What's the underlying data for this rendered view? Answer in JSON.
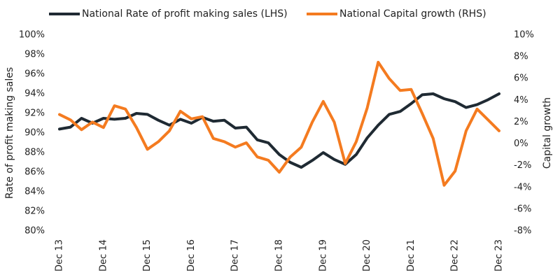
{
  "chart_data": {
    "type": "line",
    "categories": [
      "Dec 13",
      null,
      null,
      null,
      "Dec 14",
      null,
      null,
      null,
      "Dec 15",
      null,
      null,
      null,
      "Dec 16",
      null,
      null,
      null,
      "Dec 17",
      null,
      null,
      null,
      "Dec 18",
      null,
      null,
      null,
      "Dec 19",
      null,
      null,
      null,
      "Dec 20",
      null,
      null,
      null,
      "Dec 21",
      null,
      null,
      null,
      "Dec 22",
      null,
      null,
      null,
      "Dec 23"
    ],
    "ylabel": "Rate of profit making sales",
    "y2label": "Capital growth",
    "ylim": [
      80,
      100
    ],
    "yticks": [
      {
        "value": 80,
        "label": "80%"
      },
      {
        "value": 82,
        "label": "82%"
      },
      {
        "value": 84,
        "label": "84%"
      },
      {
        "value": 86,
        "label": "86%"
      },
      {
        "value": 88,
        "label": "88%"
      },
      {
        "value": 90,
        "label": "90%"
      },
      {
        "value": 92,
        "label": "92%"
      },
      {
        "value": 94,
        "label": "94%"
      },
      {
        "value": 96,
        "label": "96%"
      },
      {
        "value": 98,
        "label": "98%"
      },
      {
        "value": 100,
        "label": "100%"
      }
    ],
    "y2lim": [
      -8,
      10
    ],
    "y2ticks": [
      {
        "value": -8,
        "label": "-8%"
      },
      {
        "value": -6,
        "label": "-6%"
      },
      {
        "value": -4,
        "label": "-4%"
      },
      {
        "value": -2,
        "label": "-2%"
      },
      {
        "value": 0,
        "label": "0%"
      },
      {
        "value": 2,
        "label": "2%"
      },
      {
        "value": 4,
        "label": "4%"
      },
      {
        "value": 6,
        "label": "6%"
      },
      {
        "value": 8,
        "label": "8%"
      },
      {
        "value": 10,
        "label": "10%"
      }
    ],
    "series": [
      {
        "name": "National Rate of profit making sales (LHS)",
        "color": "#1f2a33",
        "axis": "y",
        "values": [
          90.4,
          90.6,
          91.5,
          91.0,
          91.5,
          91.4,
          91.5,
          92.0,
          91.9,
          91.3,
          90.8,
          91.4,
          91.0,
          91.6,
          91.2,
          91.3,
          90.5,
          90.6,
          89.3,
          89.0,
          87.8,
          87.0,
          86.5,
          87.2,
          88.0,
          87.3,
          86.8,
          87.8,
          89.5,
          90.8,
          91.9,
          92.2,
          93.0,
          93.9,
          94.0,
          93.5,
          93.2,
          92.6,
          92.9,
          93.4,
          94.0
        ]
      },
      {
        "name": "National Capital growth (RHS)",
        "color": "#f47b20",
        "axis": "y2",
        "values": [
          2.7,
          2.2,
          1.3,
          2.0,
          1.5,
          3.5,
          3.2,
          1.5,
          -0.5,
          0.2,
          1.2,
          3.0,
          2.3,
          2.5,
          0.5,
          0.2,
          -0.3,
          0.1,
          -1.2,
          -1.5,
          -2.6,
          -1.2,
          -0.3,
          2.0,
          3.9,
          2.0,
          -1.8,
          0.2,
          3.3,
          7.5,
          6.0,
          4.9,
          5.0,
          2.8,
          0.5,
          -3.8,
          -2.5,
          1.2,
          3.2,
          2.2,
          1.2
        ]
      }
    ]
  }
}
